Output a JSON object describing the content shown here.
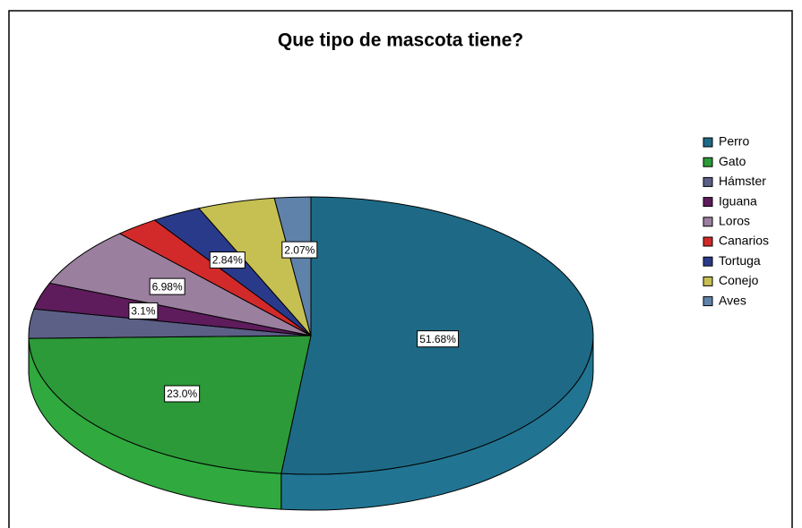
{
  "chart_data": {
    "type": "pie",
    "title": "Que tipo de mascota tiene?",
    "categories": [
      "Perro",
      "Gato",
      "Hámster",
      "Iguana",
      "Loros",
      "Canarios",
      "Tortuga",
      "Conejo",
      "Aves"
    ],
    "values": [
      51.68,
      23.0,
      3.4,
      3.1,
      6.98,
      2.5,
      2.84,
      4.43,
      2.07
    ],
    "value_labels": [
      "51.68%",
      "23.0%",
      null,
      "3.1%",
      "6.98%",
      null,
      "2.84%",
      null,
      "2.07%"
    ],
    "colors": [
      "#1e6a86",
      "#2c9a38",
      "#5c5f86",
      "#5e1c5c",
      "#9a7f9e",
      "#d22a2a",
      "#2a3a8a",
      "#c6bf52",
      "#5f82aa"
    ],
    "legend": "right"
  }
}
